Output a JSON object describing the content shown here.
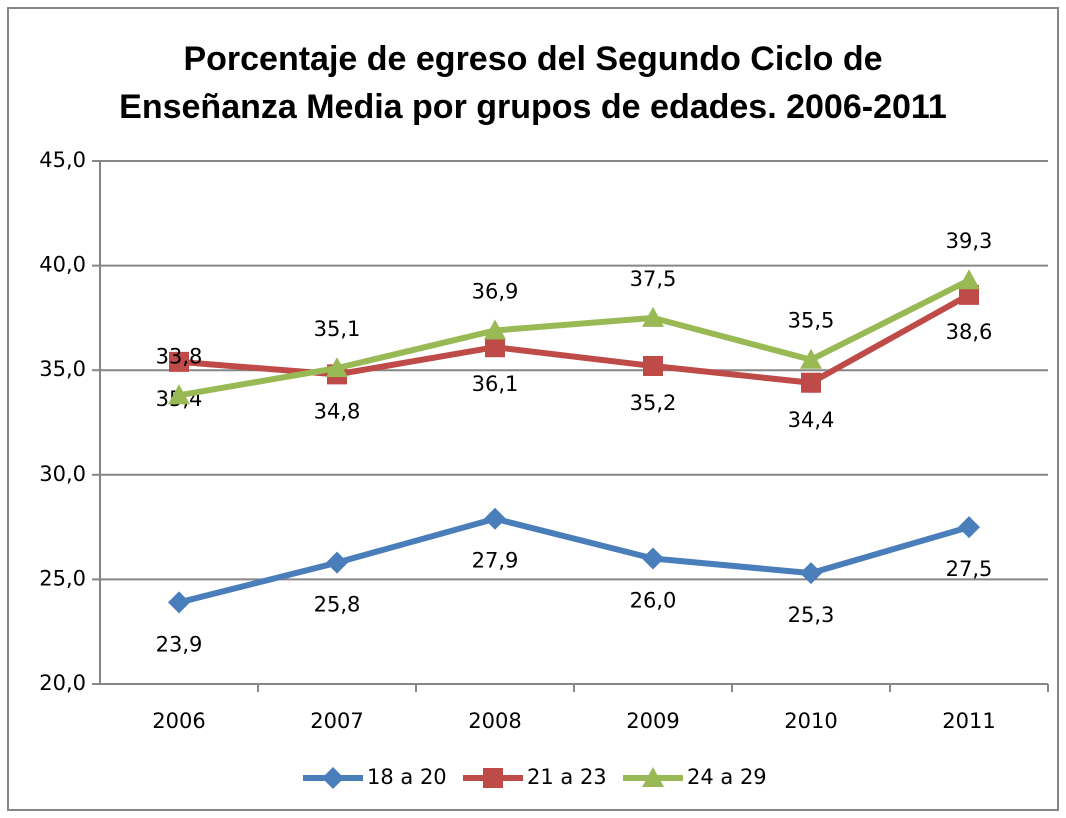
{
  "chart_data": {
    "type": "line",
    "title": "Porcentaje de egreso del Segundo Ciclo de Enseñanza Media por grupos de edades. 2006-2011",
    "title_lines": [
      "Porcentaje de egreso del Segundo Ciclo de",
      "Enseñanza Media por grupos de edades. 2006-2011"
    ],
    "categories": [
      "2006",
      "2007",
      "2008",
      "2009",
      "2010",
      "2011"
    ],
    "series": [
      {
        "name": "18 a 20",
        "color": "#4a7ebb",
        "marker": "diamond",
        "label_position": "below",
        "values": [
          23.9,
          25.8,
          27.9,
          26.0,
          25.3,
          27.5
        ],
        "value_labels": [
          "23,9",
          "25,8",
          "27,9",
          "26,0",
          "25,3",
          "27,5"
        ]
      },
      {
        "name": "21 a 23",
        "color": "#be4b48",
        "marker": "square",
        "label_position": "below",
        "values": [
          35.4,
          34.8,
          36.1,
          35.2,
          34.4,
          38.6
        ],
        "value_labels": [
          "35,4",
          "34,8",
          "36,1",
          "35,2",
          "34,4",
          "38,6"
        ]
      },
      {
        "name": "24 a 29",
        "color": "#98b954",
        "marker": "triangle",
        "label_position": "above",
        "values": [
          33.8,
          35.1,
          36.9,
          37.5,
          35.5,
          39.3
        ],
        "value_labels": [
          "33,8",
          "35,1",
          "36,9",
          "37,5",
          "35,5",
          "39,3"
        ]
      }
    ],
    "ylim": [
      20,
      45
    ],
    "yticks": [
      {
        "value": 20,
        "label": "20,0"
      },
      {
        "value": 25,
        "label": "25,0"
      },
      {
        "value": 30,
        "label": "30,0"
      },
      {
        "value": 35,
        "label": "35,0"
      },
      {
        "value": 40,
        "label": "40,0"
      },
      {
        "value": 45,
        "label": "45,0"
      }
    ],
    "grid": true,
    "legend": "bottom"
  }
}
